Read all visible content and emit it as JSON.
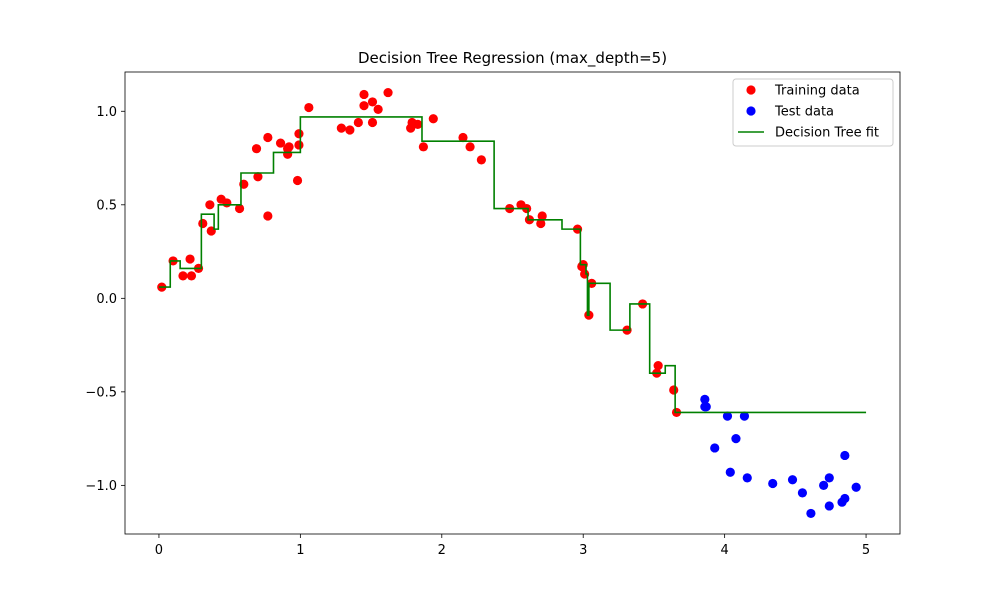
{
  "chart_data": {
    "type": "scatter",
    "title": "Decision Tree Regression (max_depth=5)",
    "xlabel": "",
    "ylabel": "",
    "xlim": [
      -0.24,
      5.24
    ],
    "ylim": [
      -1.26,
      1.21
    ],
    "x_ticks": [
      0,
      1,
      2,
      3,
      4,
      5
    ],
    "y_ticks": [
      -1.0,
      -0.5,
      0.0,
      0.5,
      1.0
    ],
    "x_tick_labels": [
      "0",
      "1",
      "2",
      "3",
      "4",
      "5"
    ],
    "y_tick_labels": [
      "−1.0",
      "−0.5",
      "0.0",
      "0.5",
      "1.0"
    ],
    "grid": false,
    "legend_position": "top-right",
    "legend": [
      {
        "label": "Training data",
        "kind": "marker",
        "color": "#ff0000"
      },
      {
        "label": "Test data",
        "kind": "marker",
        "color": "#0000ff"
      },
      {
        "label": "Decision Tree fit",
        "kind": "line",
        "color": "#008000"
      }
    ],
    "series": [
      {
        "name": "Training data",
        "kind": "scatter",
        "color": "#ff0000",
        "points": [
          [
            0.02,
            0.06
          ],
          [
            0.1,
            0.2
          ],
          [
            0.17,
            0.12
          ],
          [
            0.22,
            0.21
          ],
          [
            0.23,
            0.12
          ],
          [
            0.28,
            0.16
          ],
          [
            0.31,
            0.4
          ],
          [
            0.36,
            0.5
          ],
          [
            0.37,
            0.36
          ],
          [
            0.44,
            0.53
          ],
          [
            0.48,
            0.51
          ],
          [
            0.57,
            0.48
          ],
          [
            0.6,
            0.61
          ],
          [
            0.69,
            0.8
          ],
          [
            0.7,
            0.65
          ],
          [
            0.77,
            0.86
          ],
          [
            0.77,
            0.44
          ],
          [
            0.86,
            0.83
          ],
          [
            0.91,
            0.77
          ],
          [
            0.91,
            0.8
          ],
          [
            0.92,
            0.81
          ],
          [
            0.98,
            0.63
          ],
          [
            0.99,
            0.88
          ],
          [
            0.99,
            0.82
          ],
          [
            1.06,
            1.02
          ],
          [
            1.29,
            0.91
          ],
          [
            1.35,
            0.9
          ],
          [
            1.41,
            0.94
          ],
          [
            1.45,
            1.03
          ],
          [
            1.45,
            1.09
          ],
          [
            1.51,
            1.05
          ],
          [
            1.51,
            0.94
          ],
          [
            1.55,
            1.01
          ],
          [
            1.62,
            1.1
          ],
          [
            1.78,
            0.91
          ],
          [
            1.79,
            0.94
          ],
          [
            1.83,
            0.93
          ],
          [
            1.87,
            0.81
          ],
          [
            1.94,
            0.96
          ],
          [
            2.15,
            0.86
          ],
          [
            2.2,
            0.81
          ],
          [
            2.28,
            0.74
          ],
          [
            2.48,
            0.48
          ],
          [
            2.56,
            0.5
          ],
          [
            2.6,
            0.48
          ],
          [
            2.62,
            0.42
          ],
          [
            2.7,
            0.4
          ],
          [
            2.71,
            0.44
          ],
          [
            2.96,
            0.37
          ],
          [
            2.99,
            0.17
          ],
          [
            3.0,
            0.18
          ],
          [
            3.01,
            0.13
          ],
          [
            3.04,
            -0.09
          ],
          [
            3.06,
            0.08
          ],
          [
            3.31,
            -0.17
          ],
          [
            3.42,
            -0.03
          ],
          [
            3.52,
            -0.4
          ],
          [
            3.53,
            -0.36
          ],
          [
            3.64,
            -0.49
          ],
          [
            3.66,
            -0.61
          ]
        ]
      },
      {
        "name": "Test data",
        "kind": "scatter",
        "color": "#0000ff",
        "points": [
          [
            3.86,
            -0.54
          ],
          [
            3.86,
            -0.58
          ],
          [
            3.87,
            -0.58
          ],
          [
            3.93,
            -0.8
          ],
          [
            4.02,
            -0.63
          ],
          [
            4.04,
            -0.93
          ],
          [
            4.08,
            -0.75
          ],
          [
            4.14,
            -0.63
          ],
          [
            4.16,
            -0.96
          ],
          [
            4.34,
            -0.99
          ],
          [
            4.48,
            -0.97
          ],
          [
            4.55,
            -1.04
          ],
          [
            4.61,
            -1.15
          ],
          [
            4.7,
            -1.0
          ],
          [
            4.74,
            -0.96
          ],
          [
            4.74,
            -1.11
          ],
          [
            4.83,
            -1.09
          ],
          [
            4.85,
            -1.07
          ],
          [
            4.85,
            -0.84
          ],
          [
            4.93,
            -1.01
          ]
        ]
      },
      {
        "name": "Decision Tree fit",
        "kind": "step",
        "color": "#008000",
        "x": [
          0.0,
          0.05,
          0.08,
          0.15,
          0.3,
          0.35,
          0.39,
          0.42,
          0.58,
          0.81,
          0.97,
          1.0,
          1.86,
          2.37,
          2.61,
          2.85,
          2.98,
          3.02,
          3.03,
          3.04,
          3.06,
          3.19,
          3.33,
          3.47,
          3.58,
          3.65,
          5.0
        ],
        "y": [
          0.06,
          0.06,
          0.2,
          0.16,
          0.45,
          0.45,
          0.37,
          0.5,
          0.67,
          0.78,
          0.78,
          0.97,
          0.84,
          0.48,
          0.42,
          0.37,
          0.18,
          0.13,
          -0.09,
          0.08,
          0.08,
          -0.17,
          -0.03,
          -0.4,
          -0.36,
          -0.61,
          -0.61
        ]
      }
    ]
  }
}
